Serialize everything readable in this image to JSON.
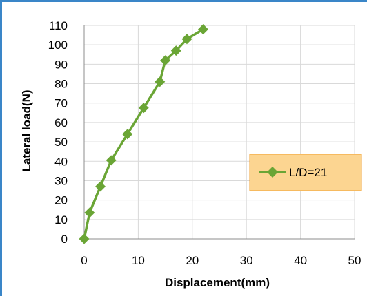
{
  "chart_data": {
    "type": "line",
    "xlabel": "Displacement(mm)",
    "ylabel": "Lateral load(N)",
    "xlim": [
      0,
      50
    ],
    "ylim": [
      0,
      110
    ],
    "xticks": [
      0,
      10,
      20,
      30,
      40,
      50
    ],
    "yticks": [
      0,
      10,
      20,
      30,
      40,
      50,
      60,
      70,
      80,
      90,
      100,
      110
    ],
    "grid": true,
    "legend_position": "right",
    "series": [
      {
        "name": "L/D=21",
        "color": "#6aa535",
        "marker": "diamond",
        "x": [
          0,
          1,
          3,
          5,
          8,
          11,
          14,
          15,
          17,
          19,
          22
        ],
        "y": [
          0,
          13.5,
          27,
          40.5,
          54,
          67.5,
          81,
          92,
          97,
          103,
          108
        ]
      }
    ],
    "colors": {
      "grid": "#d9d9d9",
      "axis": "#8c8c8c",
      "legend_bg": "#fcd591",
      "legend_border": "#f0a030"
    }
  }
}
